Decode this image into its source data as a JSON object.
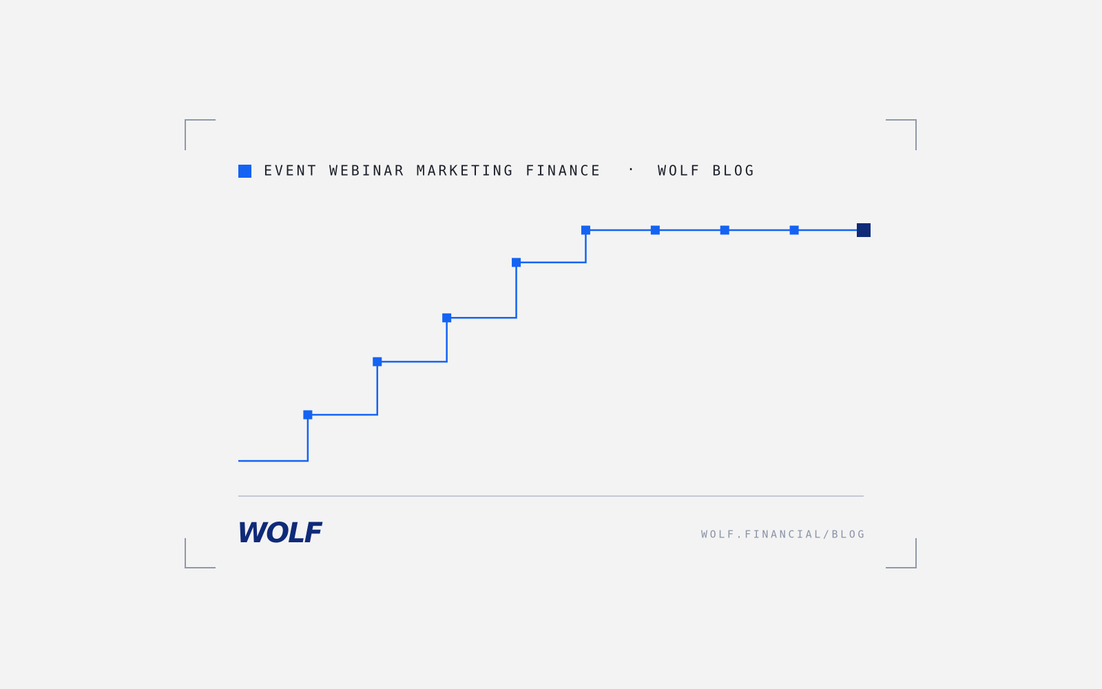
{
  "chart_data": {
    "type": "step",
    "title": "EVENT WEBINAR MARKETING FINANCE",
    "separator": "·",
    "subtitle": "WOLF BLOG",
    "x": [
      0,
      1,
      2,
      3,
      4,
      5,
      6,
      7,
      8,
      9
    ],
    "xlim": [
      0,
      9
    ],
    "ylim": [
      0,
      100
    ],
    "series": [
      {
        "color": "#1463f3",
        "last_color": "#0f2a78",
        "values": [
          0,
          20,
          43,
          62,
          86,
          100,
          100,
          100,
          100,
          100
        ]
      }
    ]
  },
  "brand": {
    "logo": "WOLF",
    "url": "WOLF.FINANCIAL/BLOG"
  }
}
